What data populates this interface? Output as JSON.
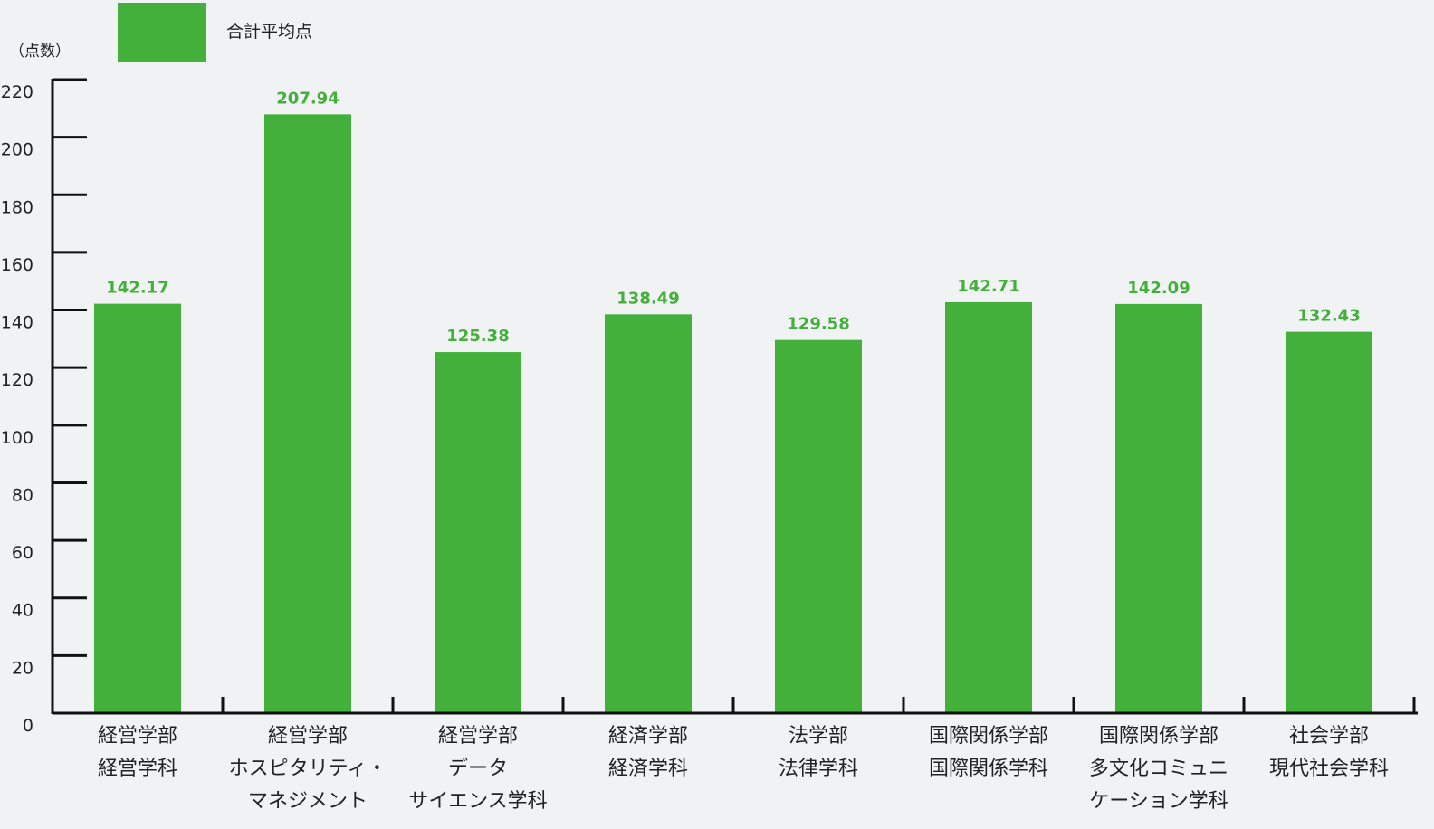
{
  "legend": {
    "label": "合計平均点"
  },
  "colors": {
    "bar": "#42b03a",
    "value_label": "#42b03a",
    "axis": "#111111"
  },
  "chart_data": {
    "type": "bar",
    "ylabel": "（点数）",
    "ylim": [
      0,
      220
    ],
    "yticks": [
      0,
      20,
      40,
      60,
      80,
      100,
      120,
      140,
      160,
      180,
      200,
      220
    ],
    "grid": false,
    "legend_position": "top-left",
    "categories": [
      [
        "経営学部",
        "経営学科"
      ],
      [
        "経営学部",
        "ホスピタリティ・",
        "マネジメント"
      ],
      [
        "経営学部",
        "データ",
        "サイエンス学科"
      ],
      [
        "経済学部",
        "経済学科"
      ],
      [
        "法学部",
        "法律学科"
      ],
      [
        "国際関係学部",
        "国際関係学科"
      ],
      [
        "国際関係学部",
        "多文化コミュニ",
        "ケーション学科"
      ],
      [
        "社会学部",
        "現代社会学科"
      ]
    ],
    "series": [
      {
        "name": "合計平均点",
        "values": [
          142.17,
          207.94,
          125.38,
          138.49,
          129.58,
          142.71,
          142.09,
          132.43
        ],
        "value_labels": [
          "142.17",
          "207.94",
          "125.38",
          "138.49",
          "129.58",
          "142.71",
          "142.09",
          "132.43"
        ]
      }
    ]
  }
}
